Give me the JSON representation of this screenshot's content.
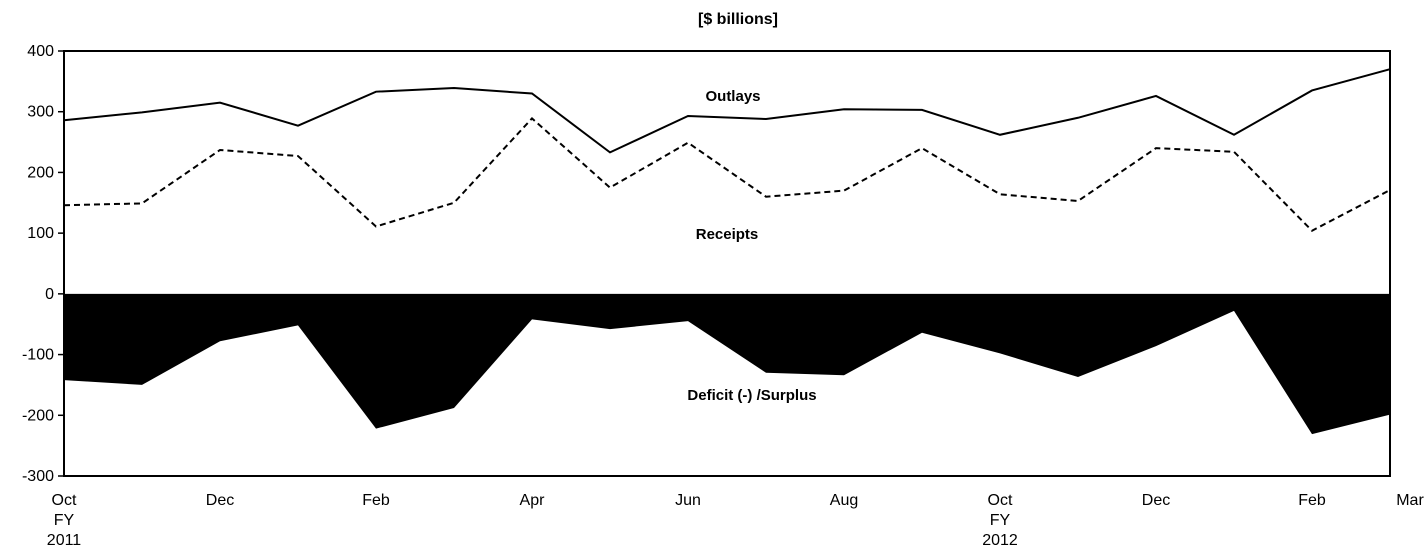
{
  "chart_data": {
    "type": "line",
    "title": "[$ billions]",
    "xlabel": "",
    "ylabel": "",
    "ylim": [
      -300,
      400
    ],
    "yticks": [
      400,
      300,
      200,
      100,
      0,
      -100,
      -200,
      -300
    ],
    "yticks_text": [
      "400",
      "300",
      "200",
      "100",
      "0",
      "-100",
      "-200",
      "-300"
    ],
    "x_ticks": [
      {
        "lines": [
          "Oct",
          "FY",
          "2011"
        ]
      },
      {
        "lines": [
          "Dec"
        ]
      },
      {
        "lines": [
          "Feb"
        ]
      },
      {
        "lines": [
          "Apr"
        ]
      },
      {
        "lines": [
          "Jun"
        ]
      },
      {
        "lines": [
          "Aug"
        ]
      },
      {
        "lines": [
          "Oct",
          "FY",
          "2012"
        ]
      },
      {
        "lines": [
          "Dec"
        ]
      },
      {
        "lines": [
          "Feb"
        ]
      },
      {
        "lines": [
          "Mar"
        ]
      }
    ],
    "categories": [
      "Oct 2010",
      "Nov 2010",
      "Dec 2010",
      "Jan 2011",
      "Feb 2011",
      "Mar 2011",
      "Apr 2011",
      "May 2011",
      "Jun 2011",
      "Jul 2011",
      "Aug 2011",
      "Sep 2011",
      "Oct 2011",
      "Nov 2011",
      "Dec 2011",
      "Jan 2012",
      "Feb 2012",
      "Mar 2012"
    ],
    "series": [
      {
        "name": "Outlays",
        "style": "solid",
        "color": "#000000",
        "values": [
          286,
          299,
          315,
          277,
          333,
          339,
          330,
          233,
          293,
          288,
          304,
          303,
          262,
          290,
          326,
          262,
          335,
          370
        ]
      },
      {
        "name": "Receipts",
        "style": "dashed",
        "color": "#000000",
        "values": [
          146,
          149,
          237,
          227,
          111,
          150,
          289,
          175,
          249,
          160,
          170,
          240,
          164,
          153,
          240,
          234,
          104,
          171
        ]
      },
      {
        "name": "Deficit (-) /Surplus",
        "style": "area",
        "color": "#000000",
        "values": [
          -142,
          -150,
          -78,
          -52,
          -222,
          -188,
          -42,
          -58,
          -45,
          -130,
          -134,
          -64,
          -98,
          -137,
          -86,
          -28,
          -231,
          -199
        ]
      }
    ],
    "grid": false,
    "legend": "inline-labels"
  }
}
